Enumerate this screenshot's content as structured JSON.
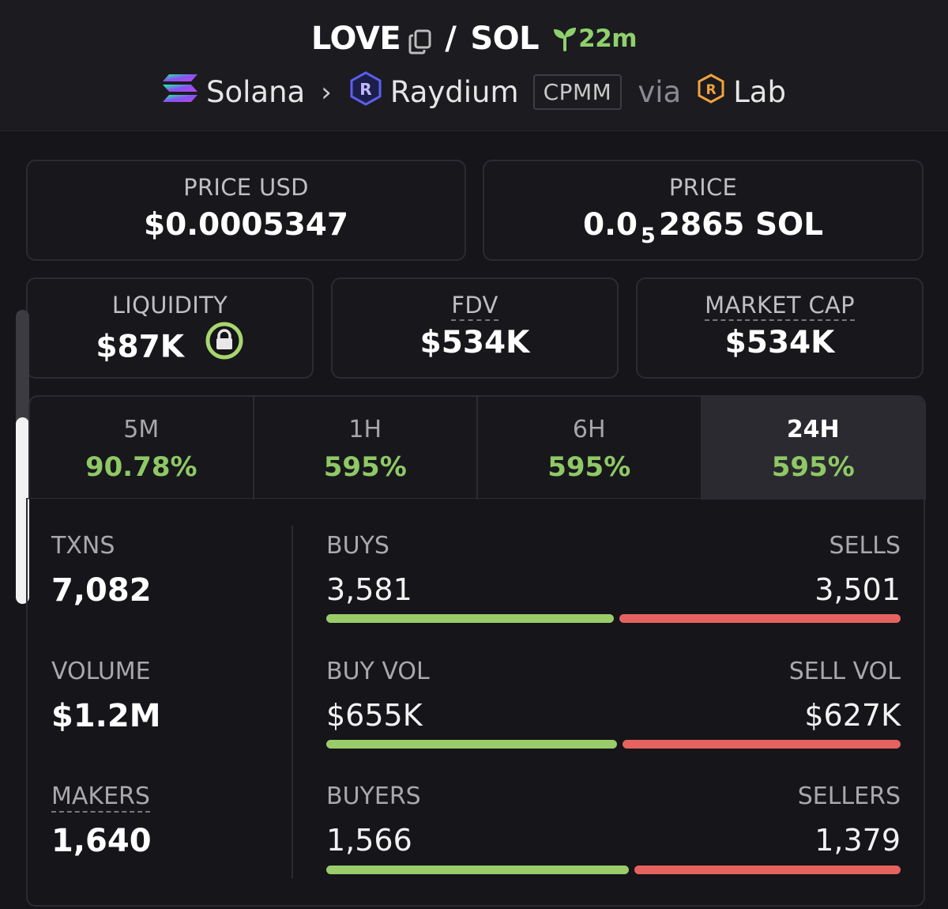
{
  "colors": {
    "green": "#8fc865",
    "red": "#e5625f",
    "background": "#131317"
  },
  "header": {
    "token_symbol": "LOVE",
    "separator": "/",
    "quote_symbol": "SOL",
    "copy_icon": "copy-icon",
    "age_icon": "sprout-icon",
    "age": "22m",
    "chain": "Solana",
    "chain_icon": "solana-logo-icon",
    "chevron": "›",
    "dex": "Raydium",
    "dex_icon": "raydium-logo-icon",
    "pool_type": "CPMM",
    "via": "via",
    "launchpad": "Lab",
    "launchpad_icon": "raydium-lab-icon"
  },
  "price": {
    "usd_label": "PRICE USD",
    "usd_value": "$0.0005347",
    "native_label": "PRICE",
    "native_prefix": "0.0",
    "native_zero_count": "5",
    "native_digits": "2865",
    "native_unit": "SOL"
  },
  "stats": {
    "liquidity_label": "LIQUIDITY",
    "liquidity_value": "$87K",
    "liquidity_lock_icon": "lock-icon",
    "fdv_label": "FDV",
    "fdv_value": "$534K",
    "mcap_label": "MARKET CAP",
    "mcap_value": "$534K"
  },
  "scrollbar": {
    "position": 0.75
  },
  "timeframes": [
    {
      "label": "5M",
      "change": "90.78%"
    },
    {
      "label": "1H",
      "change": "595%"
    },
    {
      "label": "6H",
      "change": "595%"
    },
    {
      "label": "24H",
      "change": "595%",
      "active": true
    }
  ],
  "activity": {
    "txns_label": "TXNS",
    "txns_value": "7,082",
    "volume_label": "VOLUME",
    "volume_value": "$1.2M",
    "makers_label": "MAKERS",
    "makers_value": "1,640",
    "buys_label": "BUYS",
    "buys_value": "3,581",
    "sells_label": "SELLS",
    "sells_value": "3,501",
    "buy_vol_label": "BUY VOL",
    "buy_vol_value": "$655K",
    "sell_vol_label": "SELL VOL",
    "sell_vol_value": "$627K",
    "buyers_label": "BUYERS",
    "buyers_value": "1,566",
    "sellers_label": "SELLERS",
    "sellers_value": "1,379",
    "buys_ratio": 0.506,
    "buy_vol_ratio": 0.511,
    "buyers_ratio": 0.532
  }
}
